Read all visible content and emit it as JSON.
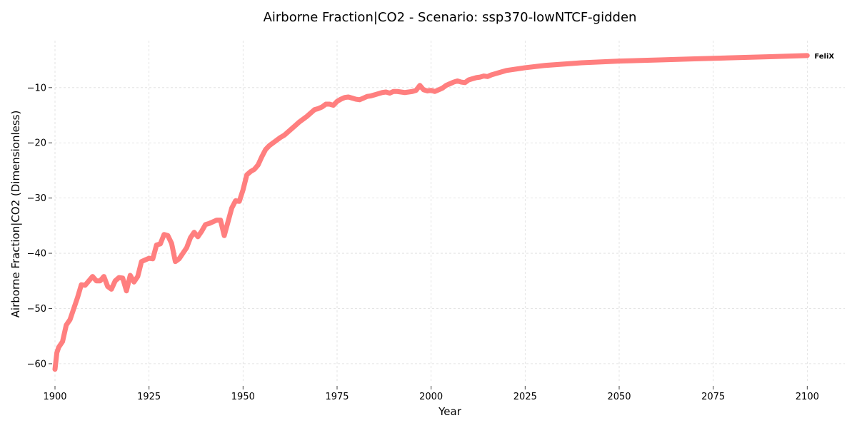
{
  "chart_data": {
    "type": "line",
    "title": "Airborne Fraction|CO2 - Scenario: ssp370-lowNTCF-gidden",
    "xlabel": "Year",
    "ylabel": "Airborne Fraction|CO2 (Dimensionless)",
    "xlim": [
      1900,
      2110
    ],
    "ylim": [
      -63.5,
      -1.5
    ],
    "xticks": [
      1900,
      1925,
      1950,
      1975,
      2000,
      2025,
      2050,
      2075,
      2100
    ],
    "yticks": [
      -60,
      -50,
      -40,
      -30,
      -20,
      -10
    ],
    "grid": true,
    "legend": "none",
    "series": [
      {
        "name": "FeliX",
        "color": "#ff7f7f",
        "x": [
          1900,
          1900.5,
          1901,
          1902,
          1903,
          1904,
          1905,
          1906,
          1907,
          1908,
          1909,
          1910,
          1911,
          1912,
          1913,
          1914,
          1915,
          1916,
          1917,
          1918,
          1919,
          1920,
          1921,
          1922,
          1923,
          1924,
          1925,
          1926,
          1927,
          1928,
          1929,
          1930,
          1931,
          1932,
          1933,
          1934,
          1935,
          1936,
          1937,
          1938,
          1939,
          1940,
          1941,
          1942,
          1943,
          1944,
          1945,
          1946,
          1947,
          1948,
          1949,
          1950,
          1951,
          1952,
          1953,
          1954,
          1955,
          1956,
          1957,
          1958,
          1959,
          1960,
          1961,
          1962,
          1963,
          1964,
          1965,
          1966,
          1967,
          1968,
          1969,
          1970,
          1971,
          1972,
          1973,
          1974,
          1975,
          1976,
          1977,
          1978,
          1979,
          1980,
          1981,
          1982,
          1983,
          1984,
          1985,
          1986,
          1987,
          1988,
          1989,
          1990,
          1991,
          1992,
          1993,
          1994,
          1995,
          1996,
          1997,
          1998,
          1999,
          2000,
          2001,
          2002,
          2003,
          2004,
          2005,
          2006,
          2007,
          2008,
          2009,
          2010,
          2011,
          2012,
          2013,
          2014,
          2015,
          2016,
          2017,
          2018,
          2019,
          2020,
          2025,
          2030,
          2040,
          2050,
          2060,
          2070,
          2080,
          2090,
          2100
        ],
        "values": [
          -61,
          -58,
          -57,
          -56,
          -53,
          -52,
          -50,
          -48,
          -45.7,
          -45.8,
          -45,
          -44.2,
          -45,
          -45,
          -44.2,
          -46,
          -46.5,
          -45,
          -44.4,
          -44.5,
          -46.8,
          -44,
          -45.2,
          -44.2,
          -41.5,
          -41.2,
          -40.9,
          -41,
          -38.5,
          -38.3,
          -36.6,
          -36.8,
          -38.2,
          -41.5,
          -41,
          -40,
          -39,
          -37.2,
          -36.2,
          -37,
          -36,
          -34.8,
          -34.6,
          -34.3,
          -34,
          -34,
          -36.8,
          -34.3,
          -31.8,
          -30.5,
          -30.6,
          -28.5,
          -25.8,
          -25.2,
          -24.8,
          -24,
          -22.5,
          -21.2,
          -20.5,
          -20,
          -19.5,
          -19,
          -18.6,
          -18,
          -17.4,
          -16.8,
          -16.2,
          -15.7,
          -15.2,
          -14.6,
          -14,
          -13.8,
          -13.5,
          -13,
          -13,
          -13.2,
          -12.5,
          -12.1,
          -11.8,
          -11.7,
          -11.9,
          -12.1,
          -12.2,
          -11.9,
          -11.6,
          -11.5,
          -11.3,
          -11.1,
          -10.9,
          -10.8,
          -11,
          -10.7,
          -10.7,
          -10.8,
          -10.9,
          -10.8,
          -10.7,
          -10.5,
          -9.6,
          -10.4,
          -10.6,
          -10.5,
          -10.7,
          -10.4,
          -10.1,
          -9.6,
          -9.3,
          -9,
          -8.8,
          -9,
          -9.1,
          -8.6,
          -8.4,
          -8.2,
          -8.1,
          -7.9,
          -8,
          -7.7,
          -7.5,
          -7.3,
          -7.1,
          -6.9,
          -6.4,
          -6,
          -5.5,
          -5.2,
          -5,
          -4.8,
          -4.6,
          -4.4,
          -4.2
        ]
      }
    ]
  }
}
